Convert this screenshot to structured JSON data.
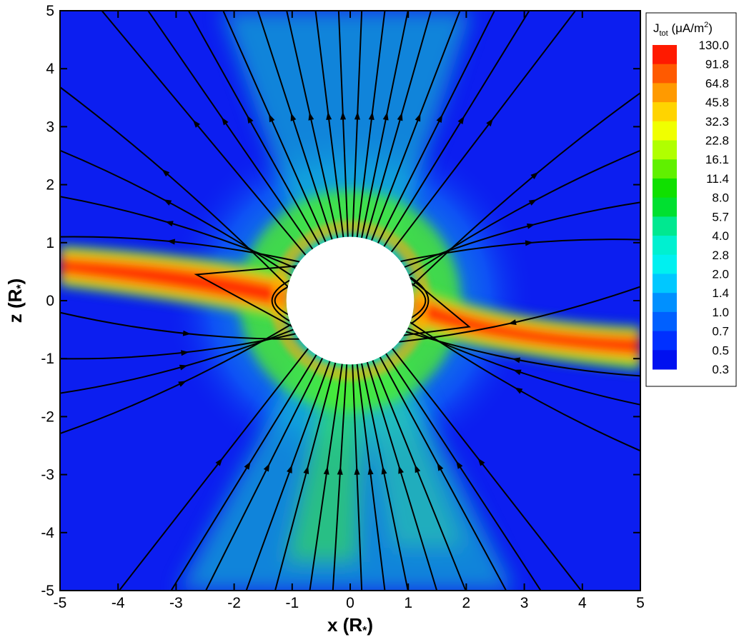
{
  "chart_data": {
    "type": "heatmap",
    "title": "",
    "xlabel": "x (R*)",
    "ylabel": "z (R*)",
    "xlabel_parts": {
      "main": "x (R",
      "sub": "*",
      "close": ")"
    },
    "ylabel_parts": {
      "main": "z (R",
      "sub": "*",
      "close": ")"
    },
    "xlim": [
      -5,
      5
    ],
    "ylim": [
      -5,
      5
    ],
    "x_ticks": [
      "-5",
      "-4",
      "-3",
      "-2",
      "-1",
      "0",
      "1",
      "2",
      "3",
      "4",
      "5"
    ],
    "y_ticks": [
      "5",
      "4",
      "3",
      "2",
      "1",
      "0",
      "-1",
      "-2",
      "-3",
      "-4",
      "-5"
    ],
    "x_tick_values": [
      -5,
      -4,
      -3,
      -2,
      -1,
      0,
      1,
      2,
      3,
      4,
      5
    ],
    "y_tick_values": [
      5,
      4,
      3,
      2,
      1,
      0,
      -1,
      -2,
      -3,
      -4,
      -5
    ],
    "grid": false,
    "body_radius": 1.1,
    "background_color": "#0c1ef0",
    "colorbar": {
      "title_parts": {
        "main": "J",
        "sub": "tot",
        "units": " (μA/m",
        "sup": "2",
        "close": ")"
      },
      "placement": "right",
      "levels": [
        "130.0",
        "91.8",
        "64.8",
        "45.8",
        "32.3",
        "22.8",
        "16.1",
        "11.4",
        "8.0",
        "5.7",
        "4.0",
        "2.8",
        "2.0",
        "1.4",
        "1.0",
        "0.7",
        "0.5",
        "0.3"
      ],
      "colors": [
        "#ff1a00",
        "#ff5a00",
        "#ff9a00",
        "#ffd400",
        "#f0ff00",
        "#b0ff00",
        "#60f000",
        "#10e000",
        "#00e030",
        "#00e890",
        "#00f0d0",
        "#00f0f0",
        "#00c8ff",
        "#0090ff",
        "#0060ff",
        "#0030ff",
        "#0010f0"
      ]
    },
    "current_sheet": {
      "description_free": true,
      "color_core": "#ff2000",
      "color_mid": "#ffd000",
      "color_edge": "#30e000"
    }
  }
}
